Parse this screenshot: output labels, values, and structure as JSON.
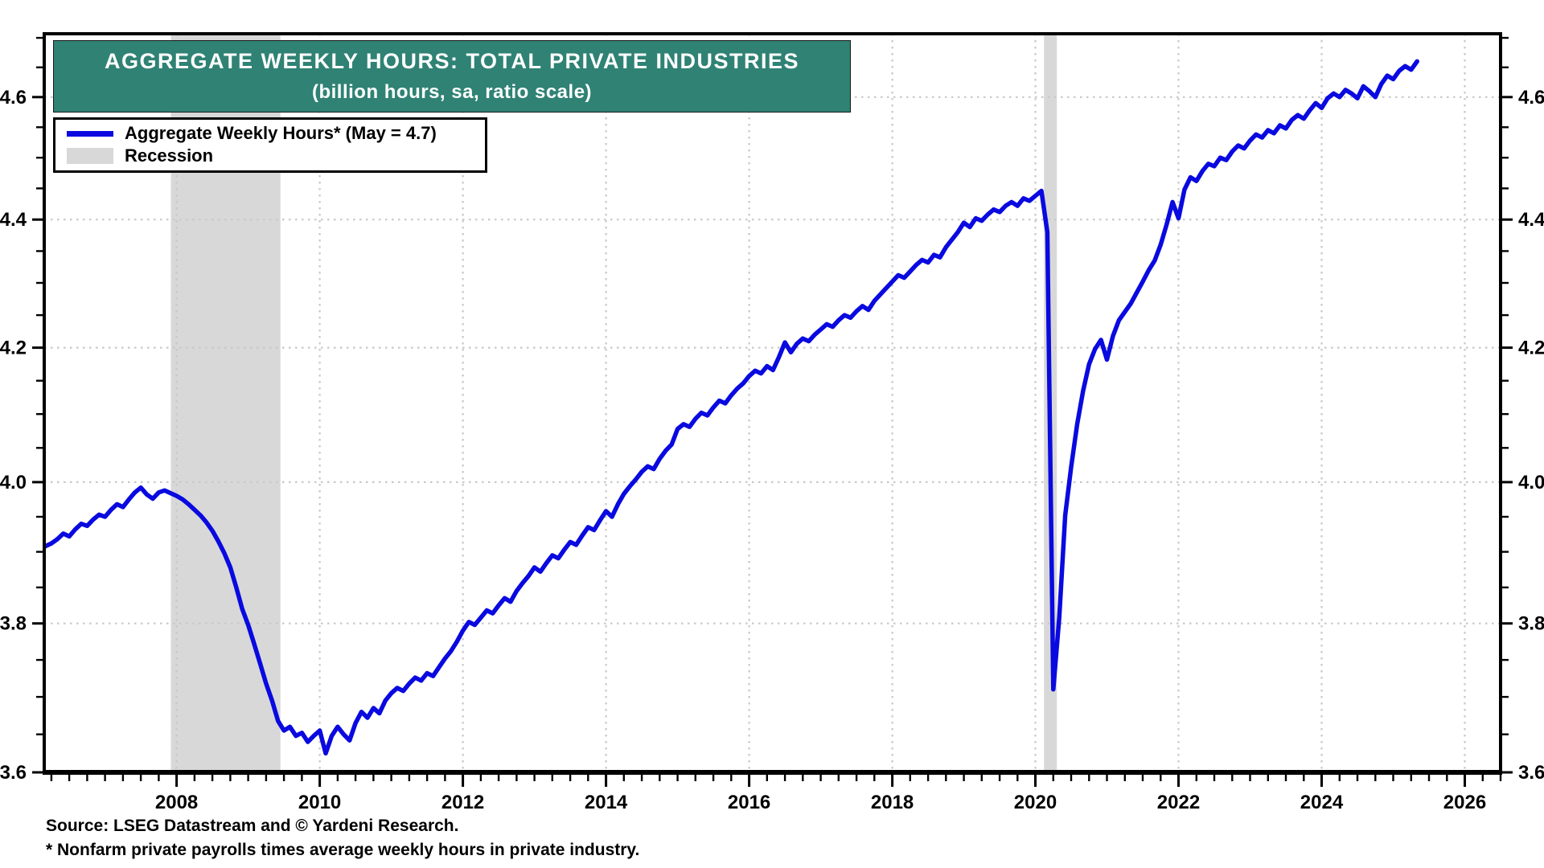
{
  "page": {
    "background": "#ffffff"
  },
  "colors": {
    "line": "#0909e0",
    "recession_band": "#d8d8d8",
    "gridline": "#c8c8c8",
    "frame": "#000000",
    "title_background": "#2f8274",
    "title_text": "#ffffff"
  },
  "chart_data": {
    "type": "line",
    "title": "AGGREGATE WEEKLY HOURS: TOTAL PRIVATE INDUSTRIES",
    "subtitle": "(billion hours, sa, ratio scale)",
    "legend": [
      {
        "label": "Aggregate Weekly Hours* (May = 4.7)",
        "swatch": "line",
        "color": "#0909e0"
      },
      {
        "label": "Recession",
        "swatch": "box",
        "color": "#d8d8d8"
      }
    ],
    "y_axis": {
      "scale": "log-ratio",
      "range": [
        3.6,
        4.707
      ],
      "tick_values": [
        3.6,
        3.8,
        4.0,
        4.2,
        4.4,
        4.6
      ],
      "tick_labels": [
        "3.6",
        "3.8",
        "4.0",
        "4.2",
        "4.4",
        "4.6"
      ],
      "minor_tick_step": 0.05,
      "sides": "both"
    },
    "x_axis": {
      "range": [
        2006.15,
        2026.5
      ],
      "tick_years": [
        2008,
        2010,
        2012,
        2014,
        2016,
        2018,
        2020,
        2022,
        2024,
        2026
      ],
      "minor_tick_step_years": 0.25
    },
    "grid": true,
    "recessions": [
      {
        "start": 2007.92,
        "end": 2009.45
      },
      {
        "start": 2020.12,
        "end": 2020.3
      }
    ],
    "series": [
      {
        "name": "Aggregate Weekly Hours",
        "color": "#0909e0",
        "frequency": "monthly",
        "start_year": 2006,
        "start_month": 3,
        "end_label": "May 2025 = 4.7",
        "values": [
          3.908,
          3.912,
          3.918,
          3.926,
          3.922,
          3.932,
          3.94,
          3.937,
          3.946,
          3.953,
          3.95,
          3.96,
          3.968,
          3.964,
          3.975,
          3.985,
          3.992,
          3.982,
          3.976,
          3.985,
          3.988,
          3.984,
          3.98,
          3.975,
          3.968,
          3.96,
          3.952,
          3.942,
          3.93,
          3.915,
          3.898,
          3.878,
          3.85,
          3.82,
          3.798,
          3.772,
          3.745,
          3.718,
          3.695,
          3.668,
          3.655,
          3.66,
          3.648,
          3.652,
          3.64,
          3.648,
          3.655,
          3.625,
          3.648,
          3.66,
          3.65,
          3.642,
          3.665,
          3.68,
          3.672,
          3.685,
          3.678,
          3.695,
          3.705,
          3.712,
          3.708,
          3.718,
          3.726,
          3.722,
          3.732,
          3.728,
          3.74,
          3.752,
          3.762,
          3.775,
          3.79,
          3.802,
          3.798,
          3.808,
          3.818,
          3.814,
          3.825,
          3.835,
          3.83,
          3.845,
          3.856,
          3.866,
          3.878,
          3.872,
          3.884,
          3.895,
          3.891,
          3.903,
          3.914,
          3.91,
          3.923,
          3.935,
          3.931,
          3.945,
          3.958,
          3.95,
          3.968,
          3.983,
          3.994,
          4.004,
          4.015,
          4.023,
          4.019,
          4.034,
          4.046,
          4.055,
          4.078,
          4.085,
          4.081,
          4.093,
          4.102,
          4.098,
          4.11,
          4.12,
          4.116,
          4.128,
          4.138,
          4.146,
          4.157,
          4.165,
          4.161,
          4.172,
          4.166,
          4.186,
          4.208,
          4.193,
          4.206,
          4.214,
          4.21,
          4.22,
          4.228,
          4.236,
          4.232,
          4.242,
          4.25,
          4.246,
          4.256,
          4.264,
          4.258,
          4.272,
          4.282,
          4.292,
          4.302,
          4.312,
          4.308,
          4.318,
          4.328,
          4.336,
          4.332,
          4.344,
          4.34,
          4.356,
          4.368,
          4.38,
          4.395,
          4.388,
          4.402,
          4.398,
          4.408,
          4.416,
          4.412,
          4.422,
          4.428,
          4.422,
          4.434,
          4.43,
          4.438,
          4.446,
          4.38,
          3.71,
          3.808,
          3.952,
          4.022,
          4.085,
          4.135,
          4.175,
          4.198,
          4.212,
          4.182,
          4.218,
          4.242,
          4.255,
          4.268,
          4.285,
          4.302,
          4.32,
          4.335,
          4.36,
          4.392,
          4.428,
          4.402,
          4.448,
          4.468,
          4.462,
          4.478,
          4.49,
          4.486,
          4.5,
          4.496,
          4.51,
          4.52,
          4.515,
          4.528,
          4.538,
          4.533,
          4.545,
          4.54,
          4.553,
          4.548,
          4.562,
          4.57,
          4.564,
          4.578,
          4.59,
          4.582,
          4.598,
          4.606,
          4.6,
          4.612,
          4.606,
          4.598,
          4.618,
          4.61,
          4.6,
          4.622,
          4.636,
          4.63,
          4.644,
          4.652,
          4.646,
          4.66
        ]
      }
    ],
    "source": "Source: LSEG Datastream and © Yardeni Research.",
    "footnote": "* Nonfarm private payrolls times average weekly hours in private industry."
  }
}
